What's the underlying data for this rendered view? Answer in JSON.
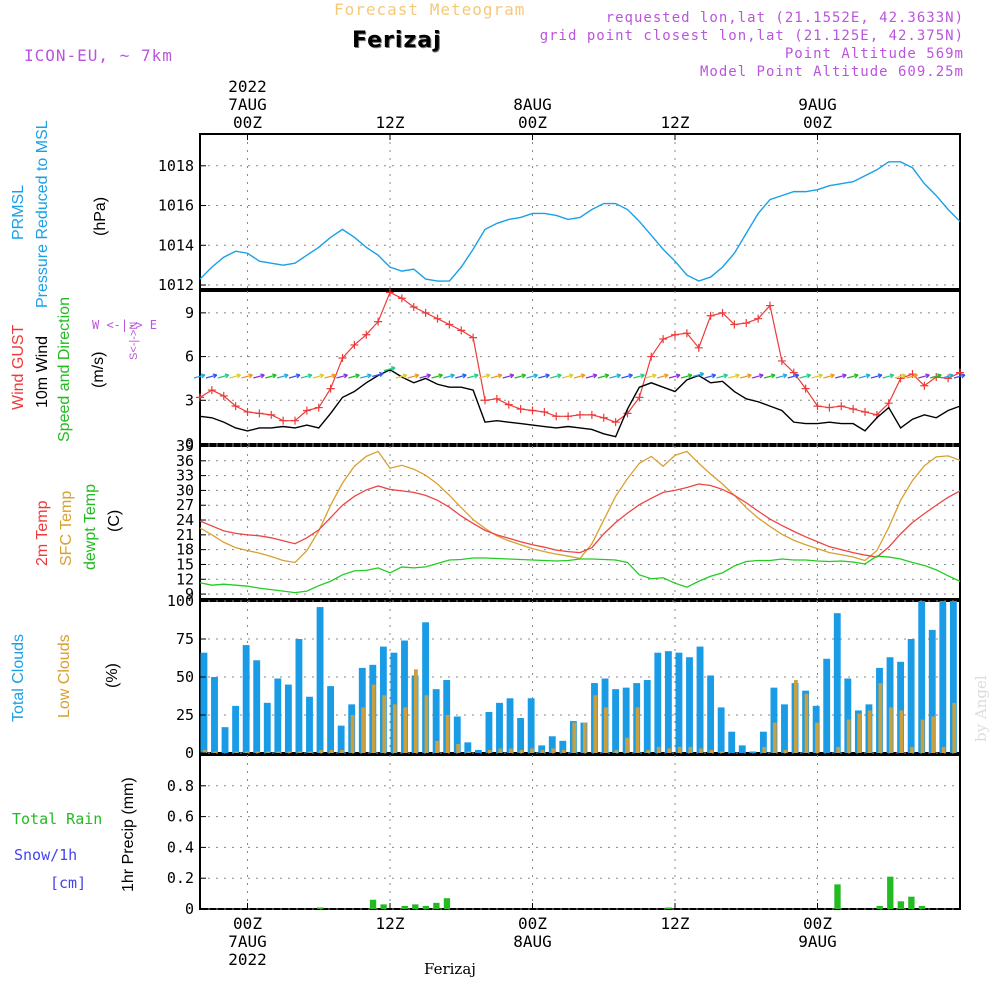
{
  "header": {
    "chart_title": "Forecast Meteogram",
    "location": "Ferizaj",
    "model": "ICON-EU, ~ 7km",
    "requested_point": "requested lon,lat (21.1552E, 42.3633N)",
    "grid_point": "grid point closest lon,lat (21.125E, 42.375N)",
    "point_altitude": "Point Altitude 569m",
    "model_altitude": "Model Point Altitude 609.25m"
  },
  "watermark": "by Angel",
  "footer_location": "Ferizaj",
  "colors": {
    "pressure": "#1aa0e6",
    "gust": "#ee3a3a",
    "wind": "#000000",
    "direction": "#22bb22",
    "temp2m": "#ee4444",
    "sfc": "#d9a030",
    "dewpt": "#22cc22",
    "cloud_total": "#1a9be6",
    "cloud_low": "#c8a040",
    "rain": "#22bb22",
    "snow": "#4444ee",
    "purple": "#bb55dd"
  },
  "time_axis": {
    "top_ticks": [
      {
        "lines": [
          "2022",
          "7AUG",
          "00Z"
        ]
      },
      {
        "lines": [
          "12Z"
        ]
      },
      {
        "lines": [
          "8AUG",
          "00Z"
        ]
      },
      {
        "lines": [
          "12Z"
        ]
      },
      {
        "lines": [
          "9AUG",
          "00Z"
        ]
      },
      {
        "lines": [
          "12Z"
        ]
      }
    ],
    "bottom_ticks": [
      {
        "lines": [
          "00Z",
          "7AUG",
          "2022"
        ]
      },
      {
        "lines": [
          "12Z"
        ]
      },
      {
        "lines": [
          "00Z",
          "8AUG"
        ]
      },
      {
        "lines": [
          "12Z"
        ]
      },
      {
        "lines": [
          "00Z",
          "9AUG"
        ]
      },
      {
        "lines": [
          "12Z"
        ]
      }
    ]
  },
  "panel_labels": {
    "pressure": {
      "line1": "PRMSL",
      "line2": "Pressure Reduced to MSL",
      "unit": "(hPa)"
    },
    "wind": {
      "gust": "Wind GUST",
      "wind10": "10m Wind",
      "speed_dir": "Speed and Direction",
      "unit": "(m/s)",
      "compass": "W <-|-> E",
      "compass_v": "S<-|->N"
    },
    "temp": {
      "t2m": "2m Temp",
      "sfc": "SFC Temp",
      "dew": "dewpt Temp",
      "unit": "(C)"
    },
    "clouds": {
      "total": "Total Clouds",
      "low": "Low Clouds",
      "unit": "(%)"
    },
    "precip": {
      "rain": "Total   Rain",
      "snow": "Snow/1h",
      "snow_unit": "[cm]",
      "axis": "1hr Precip (mm)"
    }
  },
  "chart_data": [
    {
      "type": "line",
      "title": "PRMSL Pressure Reduced to MSL",
      "ylabel": "hPa",
      "x_start_hour": -4,
      "x_end_hour": 60,
      "ylim": [
        1011.8,
        1019.6
      ],
      "yticks": [
        1012,
        1014,
        1016,
        1018
      ],
      "series": [
        {
          "name": "PRMSL",
          "x": [
            -4,
            -3,
            -2,
            -1,
            0,
            1,
            2,
            3,
            4,
            5,
            6,
            7,
            8,
            9,
            10,
            11,
            12,
            13,
            14,
            15,
            16,
            17,
            18,
            19,
            20,
            21,
            22,
            23,
            24,
            25,
            26,
            27,
            28,
            29,
            30,
            31,
            32,
            33,
            34,
            35,
            36,
            37,
            38,
            39,
            40,
            41,
            42,
            43,
            44,
            45,
            46,
            47,
            48,
            49,
            50,
            51,
            52,
            53,
            54,
            55,
            56,
            57,
            58,
            59,
            60
          ],
          "values": [
            1012.3,
            1012.9,
            1013.4,
            1013.7,
            1013.6,
            1013.2,
            1013.1,
            1013.0,
            1013.1,
            1013.5,
            1013.9,
            1014.4,
            1014.8,
            1014.4,
            1013.9,
            1013.5,
            1012.9,
            1012.7,
            1012.8,
            1012.3,
            1012.2,
            1012.2,
            1012.9,
            1013.8,
            1014.8,
            1015.1,
            1015.3,
            1015.4,
            1015.6,
            1015.6,
            1015.5,
            1015.3,
            1015.4,
            1015.8,
            1016.1,
            1016.1,
            1015.8,
            1015.2,
            1014.5,
            1013.8,
            1013.2,
            1012.5,
            1012.2,
            1012.4,
            1012.9,
            1013.6,
            1014.6,
            1015.6,
            1016.3,
            1016.5,
            1016.7,
            1016.7,
            1016.8,
            1017.0,
            1017.1,
            1017.2,
            1017.5,
            1017.8,
            1018.2,
            1018.2,
            1017.9,
            1017.1,
            1016.5,
            1015.8,
            1015.2
          ]
        }
      ]
    },
    {
      "type": "line",
      "title": "Wind GUST / 10m Wind Speed and Direction",
      "ylabel": "m/s",
      "ylim": [
        0,
        10.5
      ],
      "yticks": [
        0,
        3,
        6,
        9
      ],
      "series": [
        {
          "name": "Wind GUST",
          "values": [
            3.2,
            3.7,
            3.3,
            2.6,
            2.2,
            2.1,
            2.0,
            1.6,
            1.6,
            2.3,
            2.5,
            3.8,
            5.9,
            6.8,
            7.5,
            8.4,
            10.4,
            10.0,
            9.4,
            9.0,
            8.6,
            8.2,
            7.8,
            7.3,
            3.0,
            3.1,
            2.7,
            2.4,
            2.3,
            2.2,
            1.9,
            1.9,
            2.0,
            2.0,
            1.8,
            1.5,
            2.1,
            3.2,
            6.0,
            7.2,
            7.5,
            7.6,
            6.6,
            8.8,
            9.0,
            8.2,
            8.3,
            8.6,
            9.5,
            5.7,
            4.9,
            3.8,
            2.6,
            2.5,
            2.6,
            2.4,
            2.2,
            2.0,
            2.8,
            4.5,
            4.8,
            4.0,
            4.6,
            4.5,
            4.9
          ]
        },
        {
          "name": "10m Wind",
          "values": [
            1.9,
            1.8,
            1.5,
            1.1,
            0.9,
            1.1,
            1.1,
            1.2,
            1.1,
            1.3,
            1.1,
            2.1,
            3.2,
            3.6,
            4.2,
            4.7,
            5.1,
            4.6,
            4.2,
            4.5,
            4.1,
            3.9,
            3.9,
            3.7,
            1.5,
            1.6,
            1.5,
            1.4,
            1.3,
            1.2,
            1.1,
            1.2,
            1.1,
            1.0,
            0.7,
            0.5,
            2.4,
            3.9,
            4.2,
            3.9,
            3.6,
            4.4,
            4.7,
            4.2,
            4.3,
            3.6,
            3.1,
            2.9,
            2.6,
            2.3,
            1.5,
            1.4,
            1.4,
            1.5,
            1.4,
            1.4,
            0.9,
            1.8,
            2.5,
            1.1,
            1.7,
            2.0,
            1.8,
            2.3,
            2.6
          ]
        }
      ]
    },
    {
      "type": "line",
      "title": "2m Temp / SFC Temp / dewpt Temp",
      "ylabel": "C",
      "ylim": [
        8,
        39
      ],
      "yticks": [
        9,
        12,
        15,
        18,
        21,
        24,
        27,
        30,
        33,
        36,
        39
      ],
      "series": [
        {
          "name": "2m Temp",
          "values": [
            23.8,
            22.8,
            21.8,
            21.3,
            21.0,
            20.8,
            20.4,
            19.8,
            19.2,
            20.4,
            22.0,
            24.5,
            27.0,
            28.8,
            30.1,
            30.9,
            30.2,
            29.9,
            29.6,
            29.0,
            28.0,
            26.6,
            24.8,
            23.3,
            21.9,
            21.0,
            20.3,
            19.6,
            19.0,
            18.5,
            17.9,
            17.6,
            17.4,
            18.4,
            21.2,
            23.5,
            25.4,
            27.1,
            28.4,
            29.6,
            30.0,
            30.6,
            31.3,
            31.0,
            30.2,
            29.0,
            27.5,
            25.8,
            24.2,
            22.9,
            21.7,
            20.6,
            19.6,
            18.6,
            18.0,
            17.4,
            16.9,
            16.5,
            18.5,
            21.2,
            23.5,
            25.3,
            27.0,
            28.6,
            29.9
          ]
        },
        {
          "name": "SFC Temp",
          "values": [
            22.4,
            21.0,
            19.5,
            18.4,
            17.8,
            17.3,
            16.6,
            15.8,
            15.4,
            17.8,
            21.8,
            27.0,
            31.5,
            34.9,
            36.9,
            37.9,
            34.5,
            35.1,
            34.3,
            33.1,
            31.3,
            29.0,
            26.5,
            24.1,
            22.3,
            20.8,
            19.8,
            19.0,
            18.2,
            17.6,
            17.1,
            16.7,
            16.2,
            19.2,
            24.0,
            28.8,
            32.4,
            35.5,
            36.9,
            34.9,
            37.1,
            37.9,
            35.5,
            33.3,
            31.3,
            29.0,
            26.5,
            24.4,
            22.7,
            21.1,
            19.9,
            19.0,
            18.2,
            17.4,
            17.0,
            16.5,
            15.8,
            17.8,
            22.5,
            28.0,
            32.0,
            35.0,
            36.8,
            37.0,
            36.1
          ]
        },
        {
          "name": "dewpt Temp",
          "values": [
            11.3,
            10.8,
            11.0,
            10.8,
            10.6,
            10.2,
            9.9,
            9.6,
            9.3,
            9.6,
            10.7,
            11.6,
            12.9,
            13.7,
            13.8,
            14.3,
            13.3,
            14.5,
            14.3,
            14.5,
            15.2,
            15.9,
            16.0,
            16.3,
            16.3,
            16.2,
            16.1,
            16.0,
            15.9,
            15.8,
            15.7,
            15.8,
            16.1,
            16.1,
            16.0,
            15.9,
            15.4,
            12.9,
            12.1,
            12.3,
            11.2,
            10.4,
            11.6,
            12.6,
            13.3,
            14.7,
            15.6,
            15.8,
            15.8,
            16.1,
            15.9,
            15.9,
            15.7,
            15.6,
            15.7,
            15.5,
            15.1,
            16.7,
            16.5,
            16.1,
            15.4,
            14.8,
            13.9,
            12.7,
            11.6
          ]
        }
      ]
    },
    {
      "type": "bar",
      "title": "Total Clouds / Low Clouds",
      "ylabel": "%",
      "ylim": [
        0,
        100
      ],
      "yticks": [
        0,
        25,
        50,
        75,
        100
      ],
      "series": [
        {
          "name": "Total Clouds",
          "values": [
            66,
            50,
            17,
            31,
            71,
            61,
            33,
            49,
            45,
            75,
            37,
            96,
            44,
            18,
            32,
            56,
            58,
            70,
            66,
            74,
            51,
            86,
            42,
            48,
            24,
            7,
            2,
            27,
            33,
            36,
            23,
            36,
            5,
            11,
            8,
            21,
            20,
            46,
            49,
            42,
            43,
            46,
            48,
            66,
            67,
            66,
            63,
            70,
            51,
            30,
            14,
            5,
            1,
            14,
            43,
            32,
            46,
            41,
            31,
            62,
            92,
            49,
            28,
            32,
            56,
            63,
            60,
            75,
            100,
            81,
            100,
            100
          ]
        },
        {
          "name": "Low Clouds",
          "values": [
            2,
            1,
            0,
            1,
            1,
            1,
            1,
            1,
            1,
            1,
            1,
            2,
            2,
            2,
            25,
            30,
            45,
            38,
            32,
            30,
            55,
            38,
            8,
            25,
            6,
            1,
            0,
            2,
            3,
            3,
            2,
            3,
            2,
            3,
            2,
            20,
            20,
            38,
            30,
            2,
            10,
            30,
            2,
            4,
            3,
            4,
            4,
            3,
            2,
            1,
            0,
            0,
            0,
            4,
            20,
            2,
            48,
            39,
            20,
            0,
            4,
            22,
            26,
            28,
            46,
            30,
            28,
            4,
            22,
            24,
            4,
            33
          ]
        }
      ]
    },
    {
      "type": "bar",
      "title": "1hr Precip (mm)",
      "ylabel": "1hr Precip (mm)",
      "ylim": [
        0,
        1.0
      ],
      "yticks": [
        0,
        0.2,
        0.4,
        0.6,
        0.8
      ],
      "series": [
        {
          "name": "Total Rain",
          "values": [
            0,
            0,
            0,
            0,
            0,
            0,
            0,
            0,
            0,
            0,
            0,
            0.01,
            0,
            0,
            0,
            0,
            0.06,
            0.03,
            0,
            0.02,
            0.03,
            0.02,
            0.04,
            0.07,
            0,
            0,
            0,
            0,
            0,
            0,
            0,
            0,
            0,
            0,
            0,
            0,
            0,
            0,
            0,
            0,
            0,
            0,
            0,
            0,
            0.01,
            0,
            0,
            0,
            0,
            0,
            0,
            0,
            0,
            0,
            0,
            0,
            0,
            0,
            0,
            0,
            0.16,
            0,
            0,
            0,
            0.02,
            0.21,
            0.05,
            0.08,
            0.02,
            0,
            0,
            0
          ]
        }
      ]
    }
  ]
}
